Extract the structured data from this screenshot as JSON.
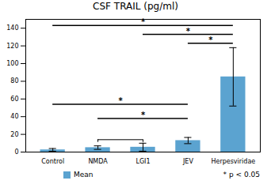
{
  "chart_data": {
    "type": "bar",
    "title": "CSF TRAIL (pg/ml)",
    "categories": [
      "Control",
      "NMDA",
      "LGI1",
      "JEV",
      "Herpesviridae"
    ],
    "series": [
      {
        "name": "Mean",
        "color": "#5BA3D0",
        "values": [
          2.5,
          5.0,
          5.5,
          13.0,
          85.0
        ],
        "errors": [
          1.5,
          2.0,
          4.5,
          3.5,
          33.0
        ]
      }
    ],
    "ylim": [
      0,
      150
    ],
    "yticks": [
      0,
      20,
      40,
      60,
      80,
      100,
      120,
      140
    ],
    "grid": false,
    "legend": "bottom",
    "significance": [
      {
        "from": "Control",
        "to": "Herpesviridae",
        "y": 143,
        "label": "*"
      },
      {
        "from": "LGI1",
        "to": "Herpesviridae",
        "y": 133,
        "label": "*"
      },
      {
        "from": "JEV",
        "to": "Herpesviridae",
        "y": 123,
        "label": "*"
      },
      {
        "from": "Control",
        "to": "JEV",
        "y": 54,
        "label": "*"
      },
      {
        "from": "NMDA",
        "to": "JEV",
        "y": 38,
        "label": "*"
      }
    ],
    "bracket": {
      "from": "NMDA",
      "to": "LGI1",
      "y": 14,
      "y_end": 11
    },
    "annotations": [
      "* p < 0.05"
    ]
  }
}
